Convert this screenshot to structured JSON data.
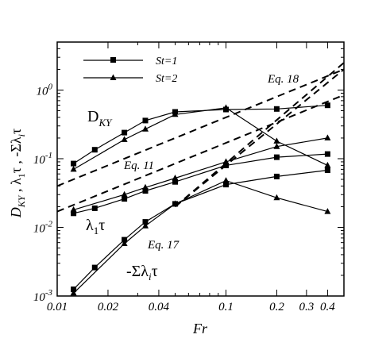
{
  "chart_data": {
    "type": "line",
    "xscale": "log",
    "yscale": "log",
    "xlim": [
      0.01,
      0.5
    ],
    "ylim": [
      0.001,
      5
    ],
    "xlabel": "Fr",
    "ylabel": "D_KY , λ_1τ , -Σλ_iτ",
    "grid": false,
    "legend_position": "top-left",
    "x_ticks": [
      {
        "value": 0.01,
        "label": "0.01"
      },
      {
        "value": 0.02,
        "label": "0.02"
      },
      {
        "value": 0.04,
        "label": "0.04"
      },
      {
        "value": 0.1,
        "label": "0.1"
      },
      {
        "value": 0.2,
        "label": "0.2"
      },
      {
        "value": 0.3,
        "label": "0.3"
      },
      {
        "value": 0.4,
        "label": "0.4"
      }
    ],
    "y_ticks": [
      {
        "value": 0.001,
        "base": "10",
        "exp": "-3"
      },
      {
        "value": 0.01,
        "base": "10",
        "exp": "-2"
      },
      {
        "value": 0.1,
        "base": "10",
        "exp": "-1"
      },
      {
        "value": 1,
        "base": "10",
        "exp": "0"
      }
    ],
    "series": [
      {
        "name": "St=1",
        "group": "D_KY",
        "marker": "square",
        "x": [
          0.0125,
          0.0167,
          0.025,
          0.0333,
          0.05,
          0.1,
          0.2,
          0.4
        ],
        "y": [
          0.085,
          0.135,
          0.24,
          0.36,
          0.48,
          0.52,
          0.53,
          0.6
        ]
      },
      {
        "name": "St=2",
        "group": "D_KY",
        "marker": "triangle",
        "x": [
          0.0125,
          0.025,
          0.0333,
          0.05,
          0.1,
          0.2,
          0.4
        ],
        "y": [
          0.07,
          0.19,
          0.27,
          0.44,
          0.55,
          0.18,
          0.08
        ]
      },
      {
        "name": "St=1",
        "group": "lambda1_tau",
        "marker": "square",
        "x": [
          0.0125,
          0.0167,
          0.025,
          0.0333,
          0.05,
          0.1,
          0.2,
          0.4
        ],
        "y": [
          0.016,
          0.019,
          0.026,
          0.034,
          0.046,
          0.08,
          0.105,
          0.117
        ]
      },
      {
        "name": "St=2",
        "group": "lambda1_tau",
        "marker": "triangle",
        "x": [
          0.0125,
          0.025,
          0.0333,
          0.05,
          0.1,
          0.2,
          0.4
        ],
        "y": [
          0.018,
          0.03,
          0.038,
          0.052,
          0.09,
          0.15,
          0.2
        ]
      },
      {
        "name": "St=1",
        "group": "sum_lambda_tau",
        "marker": "square",
        "x": [
          0.0125,
          0.0167,
          0.025,
          0.0333,
          0.05,
          0.1,
          0.2,
          0.4
        ],
        "y": [
          0.00125,
          0.0026,
          0.0066,
          0.012,
          0.022,
          0.042,
          0.055,
          0.068
        ]
      },
      {
        "name": "St=2",
        "group": "sum_lambda_tau",
        "marker": "triangle",
        "x": [
          0.0125,
          0.025,
          0.0333,
          0.05,
          0.1,
          0.2,
          0.4
        ],
        "y": [
          0.0011,
          0.0058,
          0.0105,
          0.022,
          0.048,
          0.027,
          0.017
        ]
      }
    ],
    "reference_lines": [
      {
        "label": "Eq. 18",
        "x": [
          0.01,
          0.5
        ],
        "y": [
          0.04,
          2.0
        ]
      },
      {
        "label": "Eq. 11",
        "x": [
          0.01,
          0.5
        ],
        "y": [
          0.017,
          0.85
        ]
      },
      {
        "label": "Eq. 17",
        "x": [
          0.05,
          0.5
        ],
        "y": [
          0.02,
          2.0
        ]
      },
      {
        "label": "Eq. 17",
        "x": [
          0.05,
          0.5
        ],
        "y": [
          0.02,
          2.5
        ]
      }
    ],
    "annotations": {
      "dky": "D",
      "dky_sub": "KY",
      "lambda1": "λ",
      "lambda1_sub": "1",
      "lambda1_tail": "τ",
      "sum": "-Σλ",
      "sum_sub": "i",
      "sum_tail": "τ",
      "eq18": "Eq. 18",
      "eq11": "Eq. 11",
      "eq17": "Eq. 17"
    },
    "legend": [
      {
        "label": "St=1",
        "marker": "square"
      },
      {
        "label": "St=2",
        "marker": "triangle"
      }
    ]
  }
}
